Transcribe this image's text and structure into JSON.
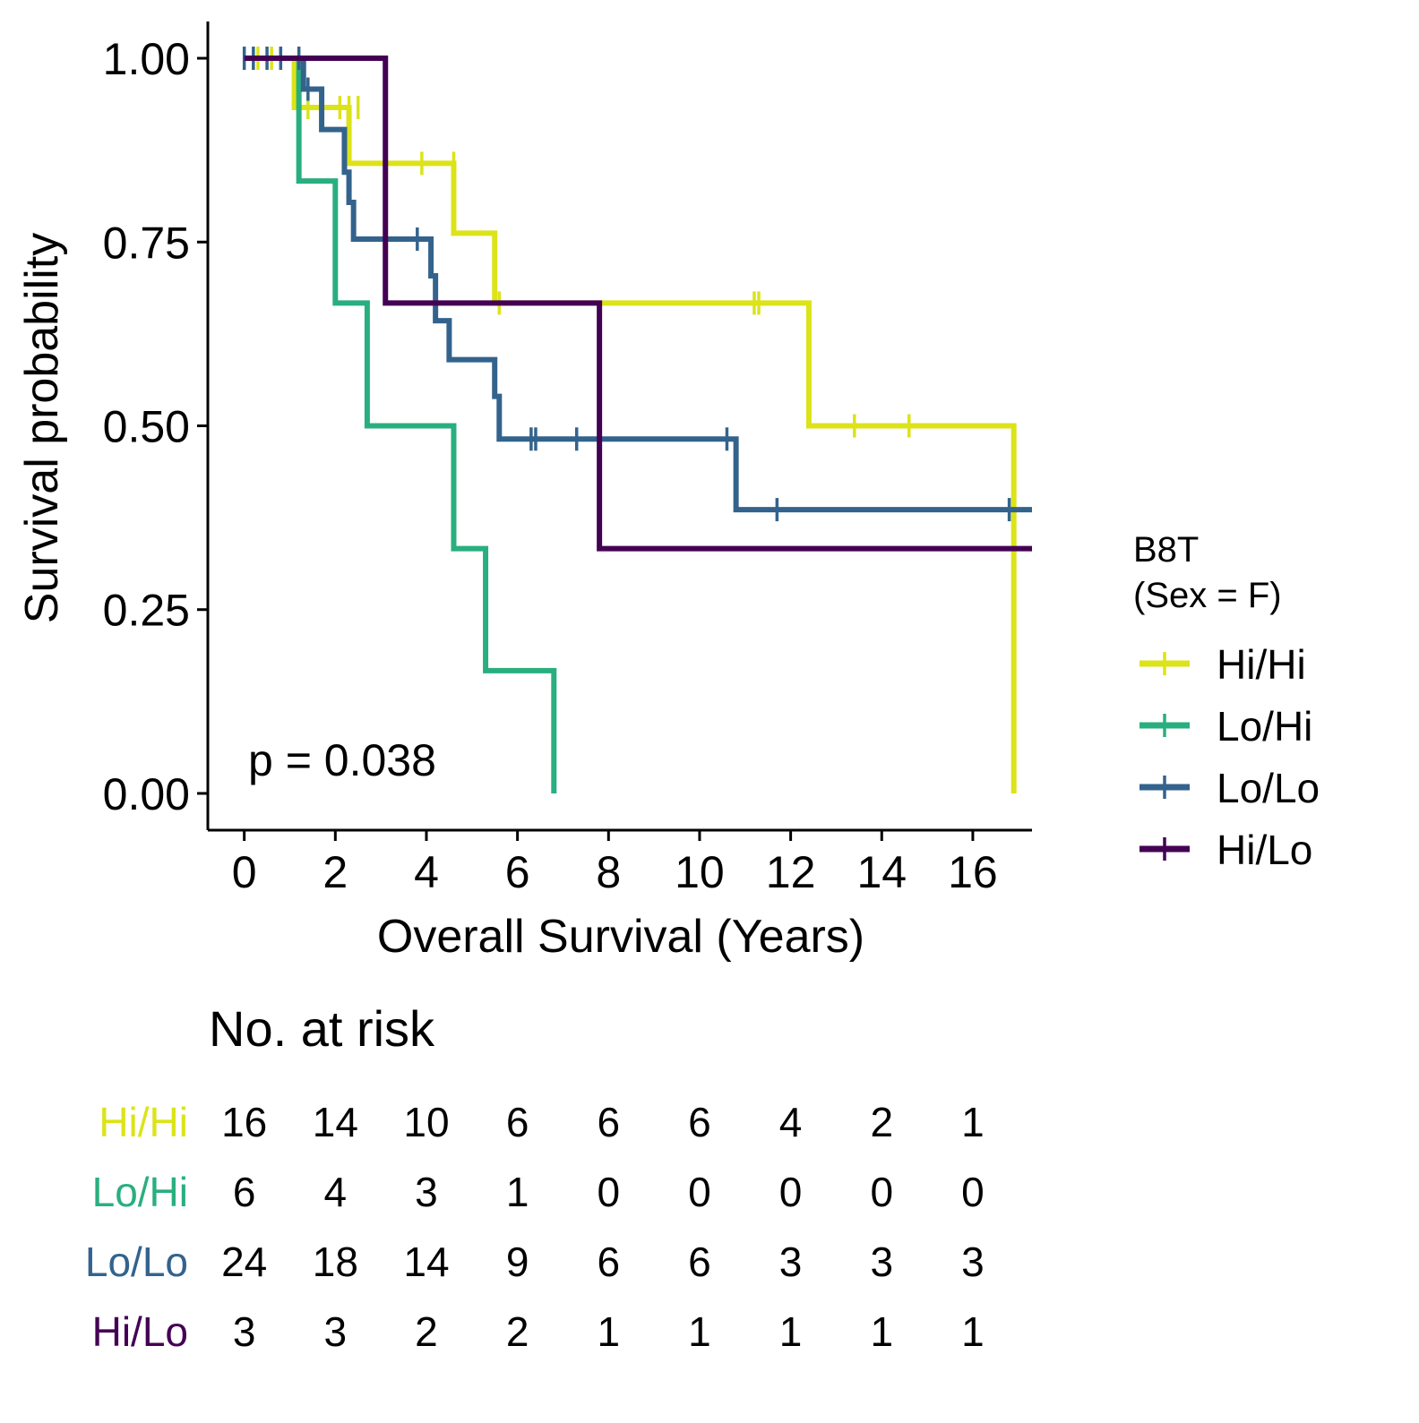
{
  "chart_data": {
    "type": "line",
    "subtype": "kaplan-meier survival curve",
    "title": "",
    "xlabel": "Overall Survival (Years)",
    "ylabel": "Survival probability",
    "xlim": [
      -0.8,
      17.3
    ],
    "ylim": [
      -0.05,
      1.05
    ],
    "x_ticks": [
      0,
      2,
      4,
      6,
      8,
      10,
      12,
      14,
      16
    ],
    "y_ticks": [
      0,
      0.25,
      0.5,
      0.75,
      1.0
    ],
    "y_tick_labels": [
      "0.00",
      "0.25",
      "0.50",
      "0.75",
      "1.00"
    ],
    "grid": false,
    "annotation": "p = 0.038",
    "legend": {
      "title_line1": "B8T",
      "title_line2": "(Sex = F)",
      "position": "right"
    },
    "series": [
      {
        "name": "Hi/Hi",
        "color": "#dce319",
        "steps": [
          [
            0,
            1.0
          ],
          [
            1.1,
            0.933
          ],
          [
            2.3,
            0.857
          ],
          [
            4.6,
            0.762
          ],
          [
            5.5,
            0.667
          ],
          [
            12.4,
            0.5
          ],
          [
            16.9,
            0.0
          ]
        ],
        "end_x": 16.9,
        "censor": [
          [
            0.3,
            1.0
          ],
          [
            0.6,
            1.0
          ],
          [
            1.4,
            0.933
          ],
          [
            2.1,
            0.933
          ],
          [
            2.3,
            0.933
          ],
          [
            2.5,
            0.933
          ],
          [
            3.9,
            0.857
          ],
          [
            4.6,
            0.857
          ],
          [
            5.6,
            0.667
          ],
          [
            11.2,
            0.667
          ],
          [
            11.3,
            0.667
          ],
          [
            13.4,
            0.5
          ],
          [
            14.6,
            0.5
          ]
        ]
      },
      {
        "name": "Lo/Hi",
        "color": "#29af7f",
        "steps": [
          [
            0,
            1.0
          ],
          [
            1.2,
            0.833
          ],
          [
            2.0,
            0.667
          ],
          [
            2.7,
            0.5
          ],
          [
            4.6,
            0.333
          ],
          [
            5.3,
            0.167
          ],
          [
            6.8,
            0.0
          ]
        ],
        "end_x": 6.8,
        "censor": []
      },
      {
        "name": "Lo/Lo",
        "color": "#33638d",
        "steps": [
          [
            0,
            1.0
          ],
          [
            1.3,
            0.958
          ],
          [
            1.7,
            0.903
          ],
          [
            2.2,
            0.845
          ],
          [
            2.3,
            0.804
          ],
          [
            2.4,
            0.754
          ],
          [
            4.1,
            0.704
          ],
          [
            4.2,
            0.643
          ],
          [
            4.5,
            0.59
          ],
          [
            5.5,
            0.54
          ],
          [
            5.6,
            0.482
          ],
          [
            10.8,
            0.386
          ]
        ],
        "end_x": 17.3,
        "censor": [
          [
            0.0,
            1.0
          ],
          [
            0.2,
            1.0
          ],
          [
            0.5,
            1.0
          ],
          [
            0.8,
            1.0
          ],
          [
            1.2,
            1.0
          ],
          [
            1.4,
            0.958
          ],
          [
            3.8,
            0.754
          ],
          [
            6.3,
            0.482
          ],
          [
            6.4,
            0.482
          ],
          [
            7.3,
            0.482
          ],
          [
            10.6,
            0.482
          ],
          [
            11.7,
            0.386
          ],
          [
            16.8,
            0.386
          ]
        ]
      },
      {
        "name": "Hi/Lo",
        "color": "#440154",
        "steps": [
          [
            0,
            1.0
          ],
          [
            3.1,
            0.667
          ],
          [
            7.8,
            0.333
          ]
        ],
        "end_x": 17.3,
        "censor": []
      }
    ],
    "risk_table": {
      "title": "No. at risk",
      "times": [
        0,
        2,
        4,
        6,
        8,
        10,
        12,
        14,
        16
      ],
      "rows": [
        {
          "label": "Hi/Hi",
          "color": "#dce319",
          "counts": [
            "16",
            "14",
            "10",
            "6",
            "6",
            "6",
            "4",
            "2",
            "1"
          ]
        },
        {
          "label": "Lo/Hi",
          "color": "#29af7f",
          "counts": [
            "6",
            "4",
            "3",
            "1",
            "0",
            "0",
            "0",
            "0",
            "0"
          ]
        },
        {
          "label": "Lo/Lo",
          "color": "#33638d",
          "counts": [
            "24",
            "18",
            "14",
            "9",
            "6",
            "6",
            "3",
            "3",
            "3"
          ]
        },
        {
          "label": "Hi/Lo",
          "color": "#440154",
          "counts": [
            "3",
            "3",
            "2",
            "2",
            "1",
            "1",
            "1",
            "1",
            "1"
          ]
        }
      ]
    }
  }
}
